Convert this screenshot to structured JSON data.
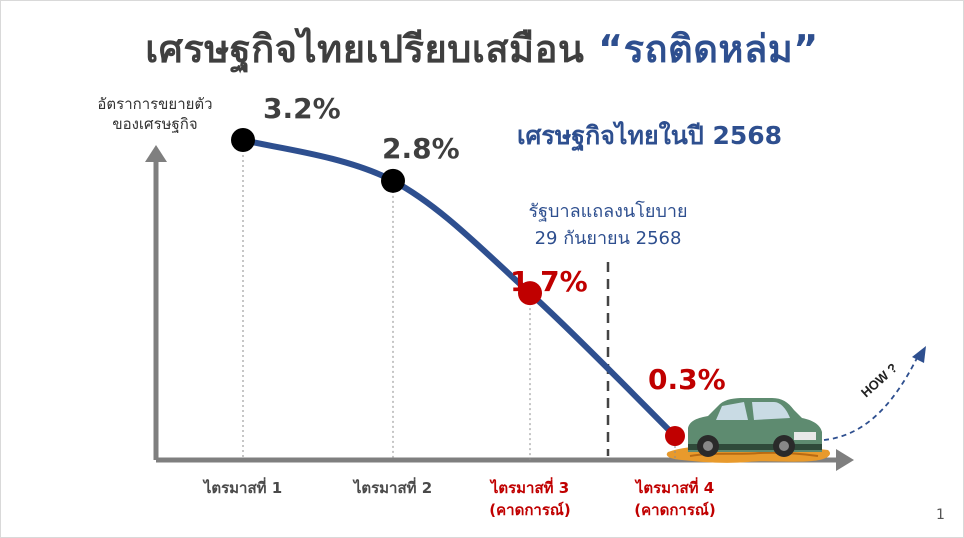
{
  "slide": {
    "title_main": "เศรษฐกิจไทยเปรียบเสมือน ",
    "title_highlight": "“รถติดหล่ม”",
    "page_number": "1"
  },
  "chart_data": {
    "type": "line",
    "title": "เศรษฐกิจไทยในปี 2568",
    "ylabel_lines": [
      "อัตราการขยายตัว",
      "ของเศรษฐกิจ"
    ],
    "categories": [
      [
        "ไตรมาสที่ 1"
      ],
      [
        "ไตรมาสที่ 2"
      ],
      [
        "ไตรมาสที่ 3",
        "(คาดการณ์)"
      ],
      [
        "ไตรมาสที่ 4",
        "(คาดการณ์)"
      ]
    ],
    "series": [
      {
        "values": [
          3.2,
          2.8,
          1.7,
          0.3
        ],
        "data_labels": [
          "3.2%",
          "2.8%",
          "1.7%",
          "0.3%"
        ],
        "forecast": [
          false,
          false,
          true,
          true
        ]
      }
    ],
    "annotations": {
      "policy_line_1": "รัฐบาลแถลงนโยบาย",
      "policy_line_2": "29 กันยายน 2568",
      "how_label": "HOW ?"
    },
    "colors": {
      "line": "#2e4f8f",
      "actual_marker": "#000000",
      "forecast_marker": "#c00000",
      "forecast_text": "#c00000",
      "axis": "#7f7f7f",
      "highlight": "#2e4f8f"
    }
  }
}
